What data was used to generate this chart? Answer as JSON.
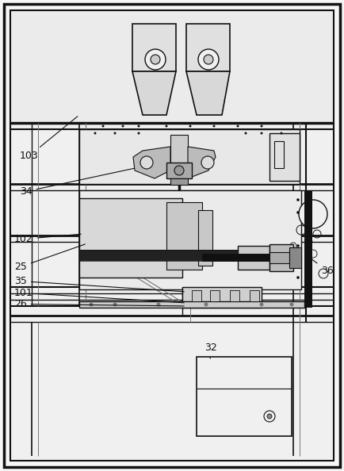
{
  "bg_color": "#f5f5f5",
  "line_color": "#777777",
  "dark_color": "#333333",
  "black": "#111111",
  "fig_width": 4.34,
  "fig_height": 5.94,
  "dpi": 100
}
